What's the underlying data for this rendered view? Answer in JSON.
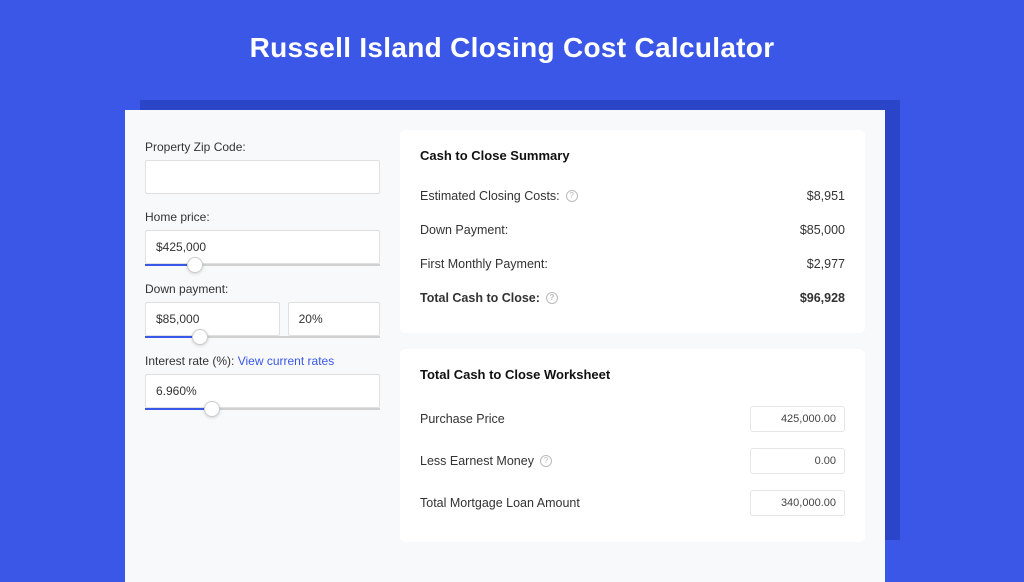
{
  "colors": {
    "page_bg": "#3a57e8",
    "shadow_bg": "#2a45c8",
    "panel_bg": "#ffffff",
    "container_bg": "#f8f9fb",
    "text": "#333333",
    "link": "#3a57e8",
    "border": "#e0e0e0"
  },
  "page": {
    "title": "Russell Island Closing Cost Calculator"
  },
  "form": {
    "zip": {
      "label": "Property Zip Code:",
      "value": ""
    },
    "home_price": {
      "label": "Home price:",
      "value": "$425,000",
      "slider_pct": 18
    },
    "down_payment": {
      "label": "Down payment:",
      "amount": "$85,000",
      "percent": "20%",
      "slider_pct": 20
    },
    "interest_rate": {
      "label": "Interest rate (%):",
      "link_text": "View current rates",
      "value": "6.960%",
      "slider_pct": 25
    }
  },
  "summary": {
    "title": "Cash to Close Summary",
    "rows": [
      {
        "label": "Estimated Closing Costs:",
        "help": true,
        "value": "$8,951",
        "bold": false
      },
      {
        "label": "Down Payment:",
        "help": false,
        "value": "$85,000",
        "bold": false
      },
      {
        "label": "First Monthly Payment:",
        "help": false,
        "value": "$2,977",
        "bold": false
      },
      {
        "label": "Total Cash to Close:",
        "help": true,
        "value": "$96,928",
        "bold": true
      }
    ]
  },
  "worksheet": {
    "title": "Total Cash to Close Worksheet",
    "rows": [
      {
        "label": "Purchase Price",
        "help": false,
        "value": "425,000.00"
      },
      {
        "label": "Less Earnest Money",
        "help": true,
        "value": "0.00"
      },
      {
        "label": "Total Mortgage Loan Amount",
        "help": false,
        "value": "340,000.00"
      }
    ]
  }
}
